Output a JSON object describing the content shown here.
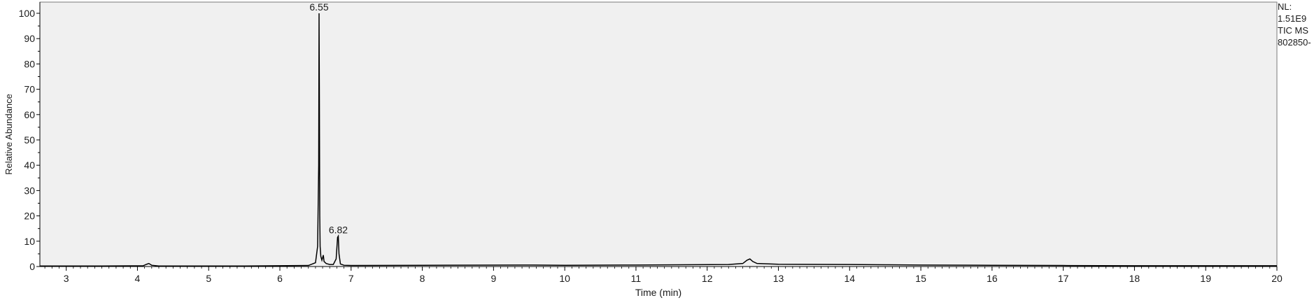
{
  "chart_data": {
    "type": "line",
    "title": "",
    "xlabel": "Time (min)",
    "ylabel": "Relative Abundance",
    "xlim": [
      2.63,
      20
    ],
    "ylim": [
      0,
      100
    ],
    "x_ticks": [
      3,
      4,
      5,
      6,
      7,
      8,
      9,
      10,
      11,
      12,
      13,
      14,
      15,
      16,
      17,
      18,
      19,
      20
    ],
    "y_ticks": [
      0,
      10,
      20,
      30,
      40,
      50,
      60,
      70,
      80,
      90,
      100
    ],
    "grid": false,
    "background": "#f0f0f0",
    "line_color": "#000000",
    "series": [
      {
        "x": [
          2.63,
          3.5,
          4.08,
          4.13,
          4.16,
          4.2,
          4.3,
          5.5,
          6.4,
          6.5,
          6.53,
          6.545,
          6.55,
          6.555,
          6.56,
          6.565,
          6.575,
          6.59,
          6.6,
          6.61,
          6.62,
          6.65,
          6.7,
          6.75,
          6.79,
          6.81,
          6.82,
          6.83,
          6.85,
          6.9,
          7.0,
          8.0,
          9.4,
          10.0,
          11.0,
          12.3,
          12.5,
          12.56,
          12.6,
          12.64,
          12.7,
          13.0,
          14.0,
          14.5,
          15.0,
          16.0,
          17.0,
          18.0,
          19.0,
          20.0
        ],
        "y": [
          0.2,
          0.2,
          0.3,
          0.9,
          1.2,
          0.5,
          0.2,
          0.2,
          0.4,
          1.5,
          8,
          40,
          100,
          65,
          20,
          8,
          4,
          2.5,
          3.5,
          4.5,
          2,
          1.2,
          0.8,
          0.8,
          3,
          11.5,
          12,
          5,
          1,
          0.5,
          0.4,
          0.5,
          0.6,
          0.5,
          0.6,
          0.8,
          1.2,
          2.5,
          3,
          2,
          1.2,
          0.9,
          0.8,
          0.7,
          0.6,
          0.5,
          0.4,
          0.3,
          0.3,
          0.3
        ]
      }
    ],
    "peak_labels": [
      {
        "x": 6.55,
        "y": 100,
        "label": "6.55"
      },
      {
        "x": 6.82,
        "y": 12,
        "label": "6.82"
      }
    ]
  },
  "meta": {
    "lines": [
      "NL:",
      "1.51E9",
      "TIC  MS",
      "802850-"
    ]
  }
}
